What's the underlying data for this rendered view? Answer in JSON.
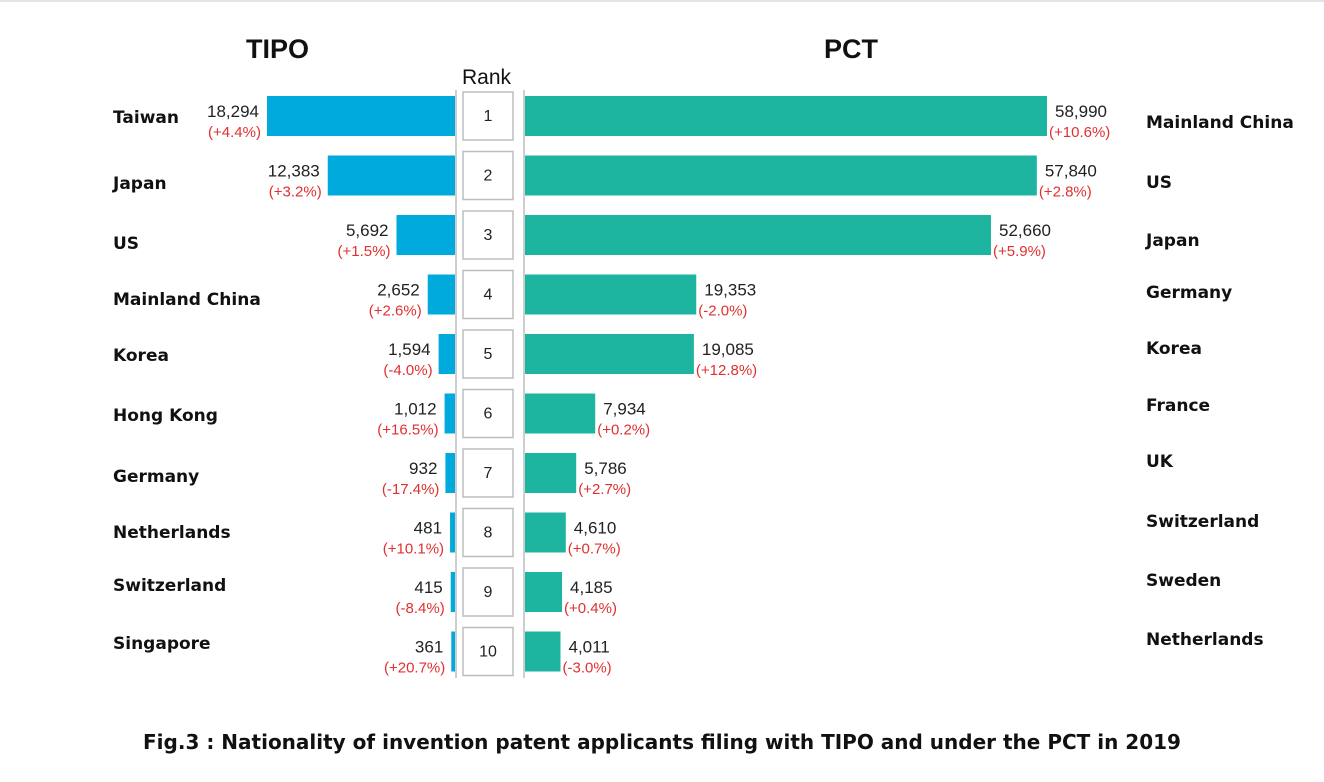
{
  "chart_data": {
    "type": "bar",
    "orientation": "horizontal",
    "title": "Fig.3 :  Nationality of invention patent applicants filing with TIPO and under the PCT in 2019",
    "rank_label": "Rank",
    "ranks": [
      "1",
      "2",
      "3",
      "4",
      "5",
      "6",
      "7",
      "8",
      "9",
      "10"
    ],
    "panels": [
      {
        "name": "TIPO",
        "color": "#00aadd",
        "direction": "left",
        "max": 18294,
        "categories": [
          "Taiwan",
          "Japan",
          "US",
          "Mainland China",
          "Korea",
          "Hong Kong",
          "Germany",
          "Netherlands",
          "Switzerland",
          "Singapore"
        ],
        "values": [
          18294,
          12383,
          5692,
          2652,
          1594,
          1012,
          932,
          481,
          415,
          361
        ],
        "value_labels": [
          "18,294",
          "12,383",
          "5,692",
          "2,652",
          "1,594",
          "1,012",
          "932",
          "481",
          "415",
          "361"
        ],
        "change_labels": [
          "(+4.4%)",
          "(+3.2%)",
          "(+1.5%)",
          "(+2.6%)",
          "(-4.0%)",
          "(+16.5%)",
          "(-17.4%)",
          "(+10.1%)",
          "(-8.4%)",
          "(+20.7%)"
        ]
      },
      {
        "name": "PCT",
        "color": "#1db5a0",
        "direction": "right",
        "max": 58990,
        "categories": [
          "Mainland China",
          "US",
          "Japan",
          "Germany",
          "Korea",
          "France",
          "UK",
          "Switzerland",
          "Sweden",
          "Netherlands"
        ],
        "values": [
          58990,
          57840,
          52660,
          19353,
          19085,
          7934,
          5786,
          4610,
          4185,
          4011
        ],
        "value_labels": [
          "58,990",
          "57,840",
          "52,660",
          "19,353",
          "19,085",
          "7,934",
          "5,786",
          "4,610",
          "4,185",
          "4,011"
        ],
        "change_labels": [
          "(+10.6%)",
          "(+2.8%)",
          "(+5.9%)",
          "(-2.0%)",
          "(+12.8%)",
          "(+0.2%)",
          "(+2.7%)",
          "(+0.7%)",
          "(+0.4%)",
          "(-3.0%)"
        ]
      }
    ],
    "change_color": "#e03030"
  }
}
